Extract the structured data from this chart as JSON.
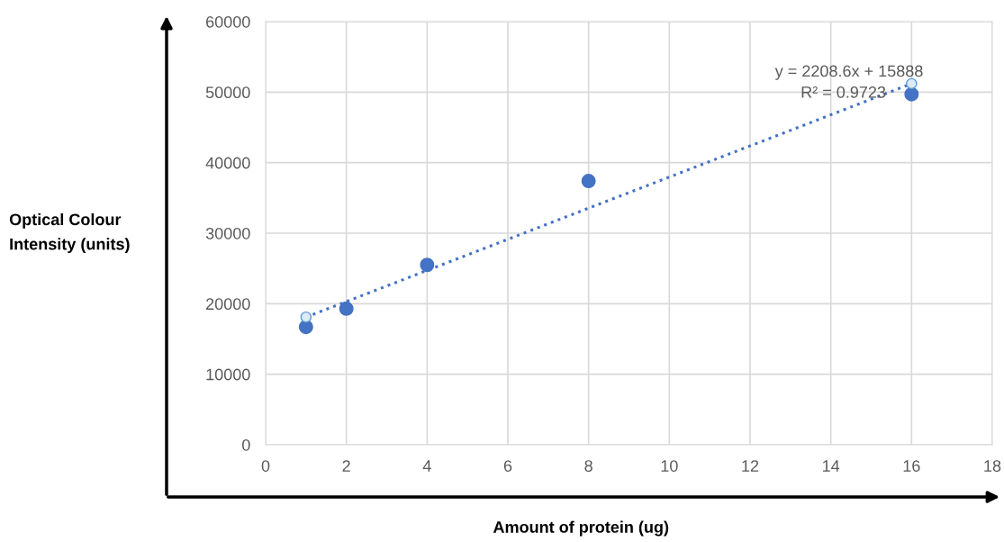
{
  "chart_data": {
    "type": "scatter",
    "xlabel": "Amount of protein (ug)",
    "ylabel": "Optical Colour\nIntensity (units)",
    "x": [
      1,
      2,
      4,
      8,
      16
    ],
    "series": [
      {
        "color": "#4472c4",
        "values": [
          16700,
          19300,
          25500,
          37400,
          49700
        ],
        "marker": "circle"
      },
      {
        "type": "line",
        "color": "#4472c4",
        "x": [
          1,
          16
        ],
        "values": [
          18100,
          51200
        ],
        "marker": "circle",
        "line_style": "dotted"
      }
    ],
    "annotations": [
      "y = 2208.6x + 15888",
      "R² = 0.9723"
    ],
    "xlim": [
      0,
      18
    ],
    "xticks": [
      0,
      2,
      4,
      6,
      8,
      10,
      12,
      14,
      16,
      18
    ],
    "ylim": [
      0,
      60000
    ],
    "yticks": [
      0,
      10000,
      20000,
      30000,
      40000,
      50000,
      60000
    ],
    "grid": true
  }
}
